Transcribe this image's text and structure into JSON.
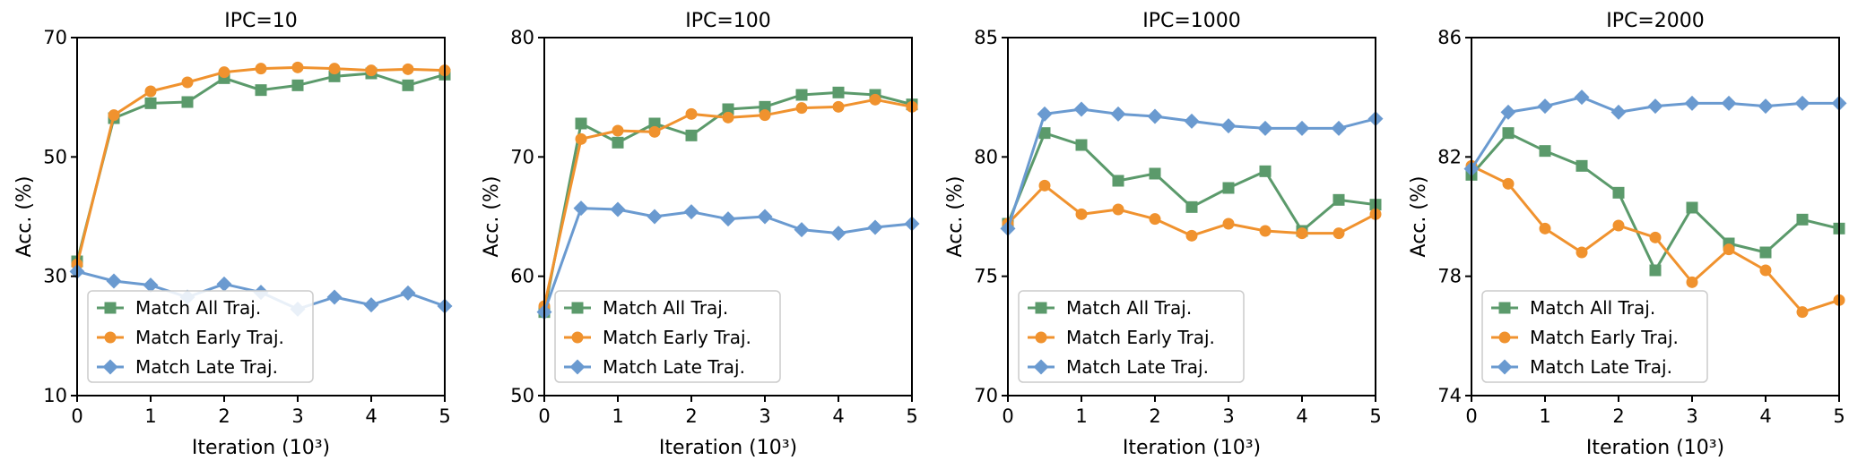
{
  "chart_data": [
    {
      "type": "line",
      "title": "IPC=10",
      "xlabel": "Iteration (10³)",
      "ylabel": "Acc. (%)",
      "xlim": [
        0,
        5
      ],
      "ylim": [
        10,
        70
      ],
      "xticks": [
        0,
        1,
        2,
        3,
        4,
        5
      ],
      "yticks": [
        10,
        30,
        50,
        70
      ],
      "grid": false,
      "legend_position": "lower-left",
      "x": [
        0,
        0.5,
        1,
        1.5,
        2,
        2.5,
        3,
        3.5,
        4,
        4.5,
        5
      ],
      "series": [
        {
          "name": "Match All Traj.",
          "color": "#5b9a6b",
          "marker": "square",
          "values": [
            32.5,
            56.5,
            59.0,
            59.2,
            63.2,
            61.2,
            62.0,
            63.5,
            64.0,
            62.0,
            63.8
          ]
        },
        {
          "name": "Match Early Traj.",
          "color": "#f0922e",
          "marker": "circle",
          "values": [
            32.0,
            57.0,
            61.0,
            62.5,
            64.2,
            64.8,
            65.0,
            64.8,
            64.5,
            64.7,
            64.5
          ]
        },
        {
          "name": "Match Late Traj.",
          "color": "#6a9ad0",
          "marker": "diamond",
          "values": [
            30.8,
            29.2,
            28.5,
            26.5,
            28.7,
            27.3,
            24.5,
            26.5,
            25.2,
            27.2,
            25.0
          ]
        }
      ]
    },
    {
      "type": "line",
      "title": "IPC=100",
      "xlabel": "Iteration (10³)",
      "ylabel": "Acc. (%)",
      "xlim": [
        0,
        5
      ],
      "ylim": [
        50,
        80
      ],
      "xticks": [
        0,
        1,
        2,
        3,
        4,
        5
      ],
      "yticks": [
        50,
        60,
        70,
        80
      ],
      "grid": false,
      "legend_position": "lower-left",
      "x": [
        0,
        0.5,
        1,
        1.5,
        2,
        2.5,
        3,
        3.5,
        4,
        4.5,
        5
      ],
      "series": [
        {
          "name": "Match All Traj.",
          "color": "#5b9a6b",
          "marker": "square",
          "values": [
            57.0,
            72.8,
            71.2,
            72.8,
            71.8,
            74.0,
            74.2,
            75.2,
            75.4,
            75.2,
            74.4
          ]
        },
        {
          "name": "Match Early Traj.",
          "color": "#f0922e",
          "marker": "circle",
          "values": [
            57.5,
            71.5,
            72.2,
            72.1,
            73.6,
            73.3,
            73.5,
            74.1,
            74.2,
            74.8,
            74.2
          ]
        },
        {
          "name": "Match Late Traj.",
          "color": "#6a9ad0",
          "marker": "diamond",
          "values": [
            57.0,
            65.7,
            65.6,
            65.0,
            65.4,
            64.8,
            65.0,
            63.9,
            63.6,
            64.1,
            64.4
          ]
        }
      ]
    },
    {
      "type": "line",
      "title": "IPC=1000",
      "xlabel": "Iteration (10³)",
      "ylabel": "Acc. (%)",
      "xlim": [
        0,
        5
      ],
      "ylim": [
        70,
        85
      ],
      "xticks": [
        0,
        1,
        2,
        3,
        4,
        5
      ],
      "yticks": [
        70,
        75,
        80,
        85
      ],
      "grid": false,
      "legend_position": "lower-left",
      "x": [
        0,
        0.5,
        1,
        1.5,
        2,
        2.5,
        3,
        3.5,
        4,
        4.5,
        5
      ],
      "series": [
        {
          "name": "Match All Traj.",
          "color": "#5b9a6b",
          "marker": "square",
          "values": [
            77.2,
            81.0,
            80.5,
            79.0,
            79.3,
            77.9,
            78.7,
            79.4,
            76.9,
            78.2,
            78.0
          ]
        },
        {
          "name": "Match Early Traj.",
          "color": "#f0922e",
          "marker": "circle",
          "values": [
            77.2,
            78.8,
            77.6,
            77.8,
            77.4,
            76.7,
            77.2,
            76.9,
            76.8,
            76.8,
            77.6
          ]
        },
        {
          "name": "Match Late Traj.",
          "color": "#6a9ad0",
          "marker": "diamond",
          "values": [
            77.0,
            81.8,
            82.0,
            81.8,
            81.7,
            81.5,
            81.3,
            81.2,
            81.2,
            81.2,
            81.6
          ]
        }
      ]
    },
    {
      "type": "line",
      "title": "IPC=2000",
      "xlabel": "Iteration (10³)",
      "ylabel": "Acc. (%)",
      "xlim": [
        0,
        5
      ],
      "ylim": [
        74,
        86
      ],
      "xticks": [
        0,
        1,
        2,
        3,
        4,
        5
      ],
      "yticks": [
        74,
        78,
        82,
        86
      ],
      "grid": false,
      "legend_position": "lower-left",
      "x": [
        0,
        0.5,
        1,
        1.5,
        2,
        2.5,
        3,
        3.5,
        4,
        4.5,
        5
      ],
      "series": [
        {
          "name": "Match All Traj.",
          "color": "#5b9a6b",
          "marker": "square",
          "values": [
            81.4,
            82.8,
            82.2,
            81.7,
            80.8,
            78.2,
            80.3,
            79.1,
            78.8,
            79.9,
            79.6
          ]
        },
        {
          "name": "Match Early Traj.",
          "color": "#f0922e",
          "marker": "circle",
          "values": [
            81.7,
            81.1,
            79.6,
            78.8,
            79.7,
            79.3,
            77.8,
            78.9,
            78.2,
            76.8,
            77.2
          ]
        },
        {
          "name": "Match Late Traj.",
          "color": "#6a9ad0",
          "marker": "diamond",
          "values": [
            81.6,
            83.5,
            83.7,
            84.0,
            83.5,
            83.7,
            83.8,
            83.8,
            83.7,
            83.8,
            83.8
          ]
        }
      ]
    }
  ]
}
